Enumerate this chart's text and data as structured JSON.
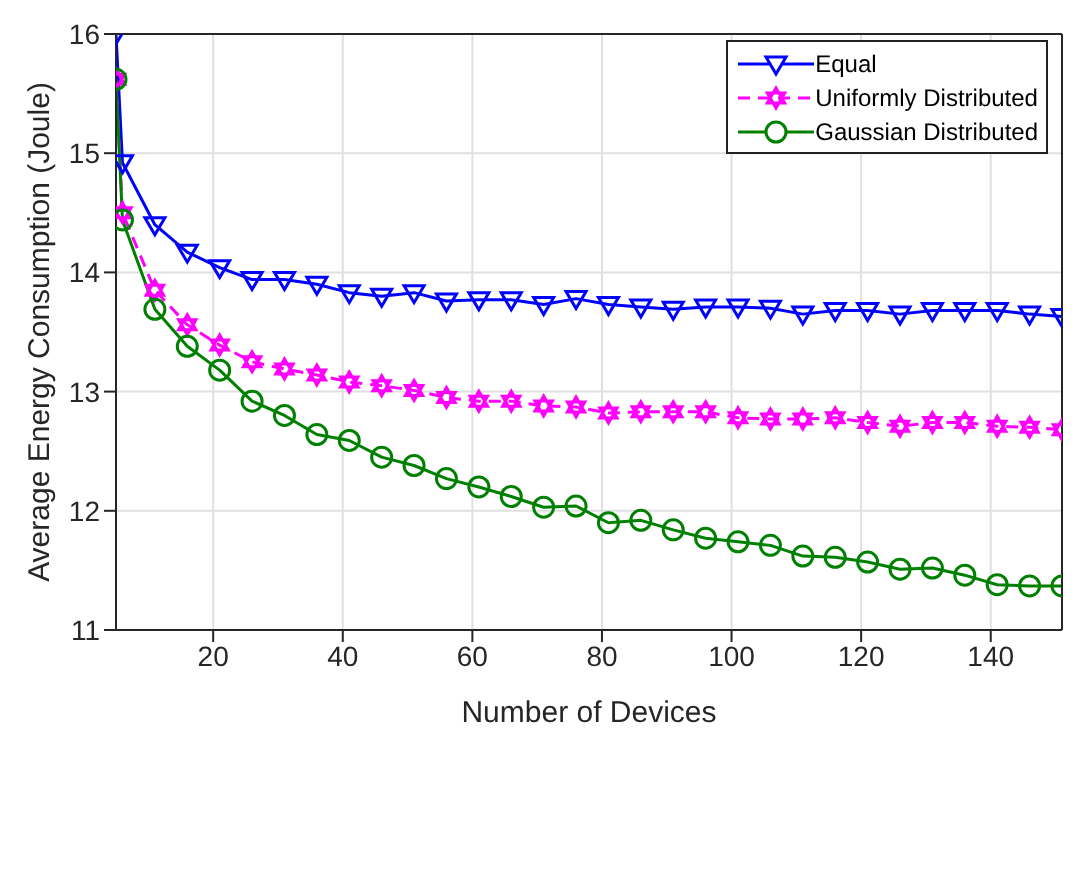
{
  "chart_data": {
    "type": "line",
    "xlabel": "Number of Devices",
    "ylabel": "Average Energy Consumption (Joule)",
    "x": [
      5,
      6,
      11,
      16,
      21,
      26,
      31,
      36,
      41,
      46,
      51,
      56,
      61,
      66,
      71,
      76,
      81,
      86,
      91,
      96,
      101,
      106,
      111,
      116,
      121,
      126,
      131,
      136,
      141,
      146,
      151
    ],
    "series": [
      {
        "name": "Equal",
        "color": "#0000ff",
        "marker": "triangle",
        "line_style": "solid",
        "values": [
          16,
          14.92,
          14.4,
          14.17,
          14.04,
          13.94,
          13.94,
          13.9,
          13.83,
          13.8,
          13.83,
          13.76,
          13.77,
          13.77,
          13.73,
          13.78,
          13.73,
          13.71,
          13.69,
          13.71,
          13.71,
          13.7,
          13.65,
          13.68,
          13.68,
          13.65,
          13.68,
          13.68,
          13.68,
          13.65,
          13.63
        ]
      },
      {
        "name": "Uniformly Distributed",
        "color": "#ff00ff",
        "marker": "star",
        "line_style": "dashed",
        "values": [
          15.62,
          14.5,
          13.85,
          13.56,
          13.39,
          13.25,
          13.19,
          13.14,
          13.08,
          13.05,
          13.01,
          12.95,
          12.92,
          12.92,
          12.88,
          12.87,
          12.82,
          12.83,
          12.83,
          12.83,
          12.78,
          12.77,
          12.77,
          12.78,
          12.74,
          12.71,
          12.74,
          12.74,
          12.71,
          12.7,
          12.68
        ]
      },
      {
        "name": "Gaussian Distributed",
        "color": "#008000",
        "marker": "circle",
        "line_style": "solid",
        "values": [
          15.62,
          14.44,
          13.69,
          13.38,
          13.18,
          12.92,
          12.8,
          12.64,
          12.59,
          12.45,
          12.38,
          12.27,
          12.2,
          12.12,
          12.03,
          12.04,
          11.9,
          11.92,
          11.84,
          11.77,
          11.74,
          11.71,
          11.62,
          11.61,
          11.57,
          11.51,
          11.52,
          11.46,
          11.38,
          11.37,
          11.37
        ]
      }
    ],
    "xlim": [
      5,
      151
    ],
    "xticks": [
      20,
      40,
      60,
      80,
      100,
      120,
      140
    ],
    "ylim": [
      11,
      16
    ],
    "yticks": [
      11,
      12,
      13,
      14,
      15,
      16
    ],
    "grid": true,
    "legend": "top right"
  }
}
